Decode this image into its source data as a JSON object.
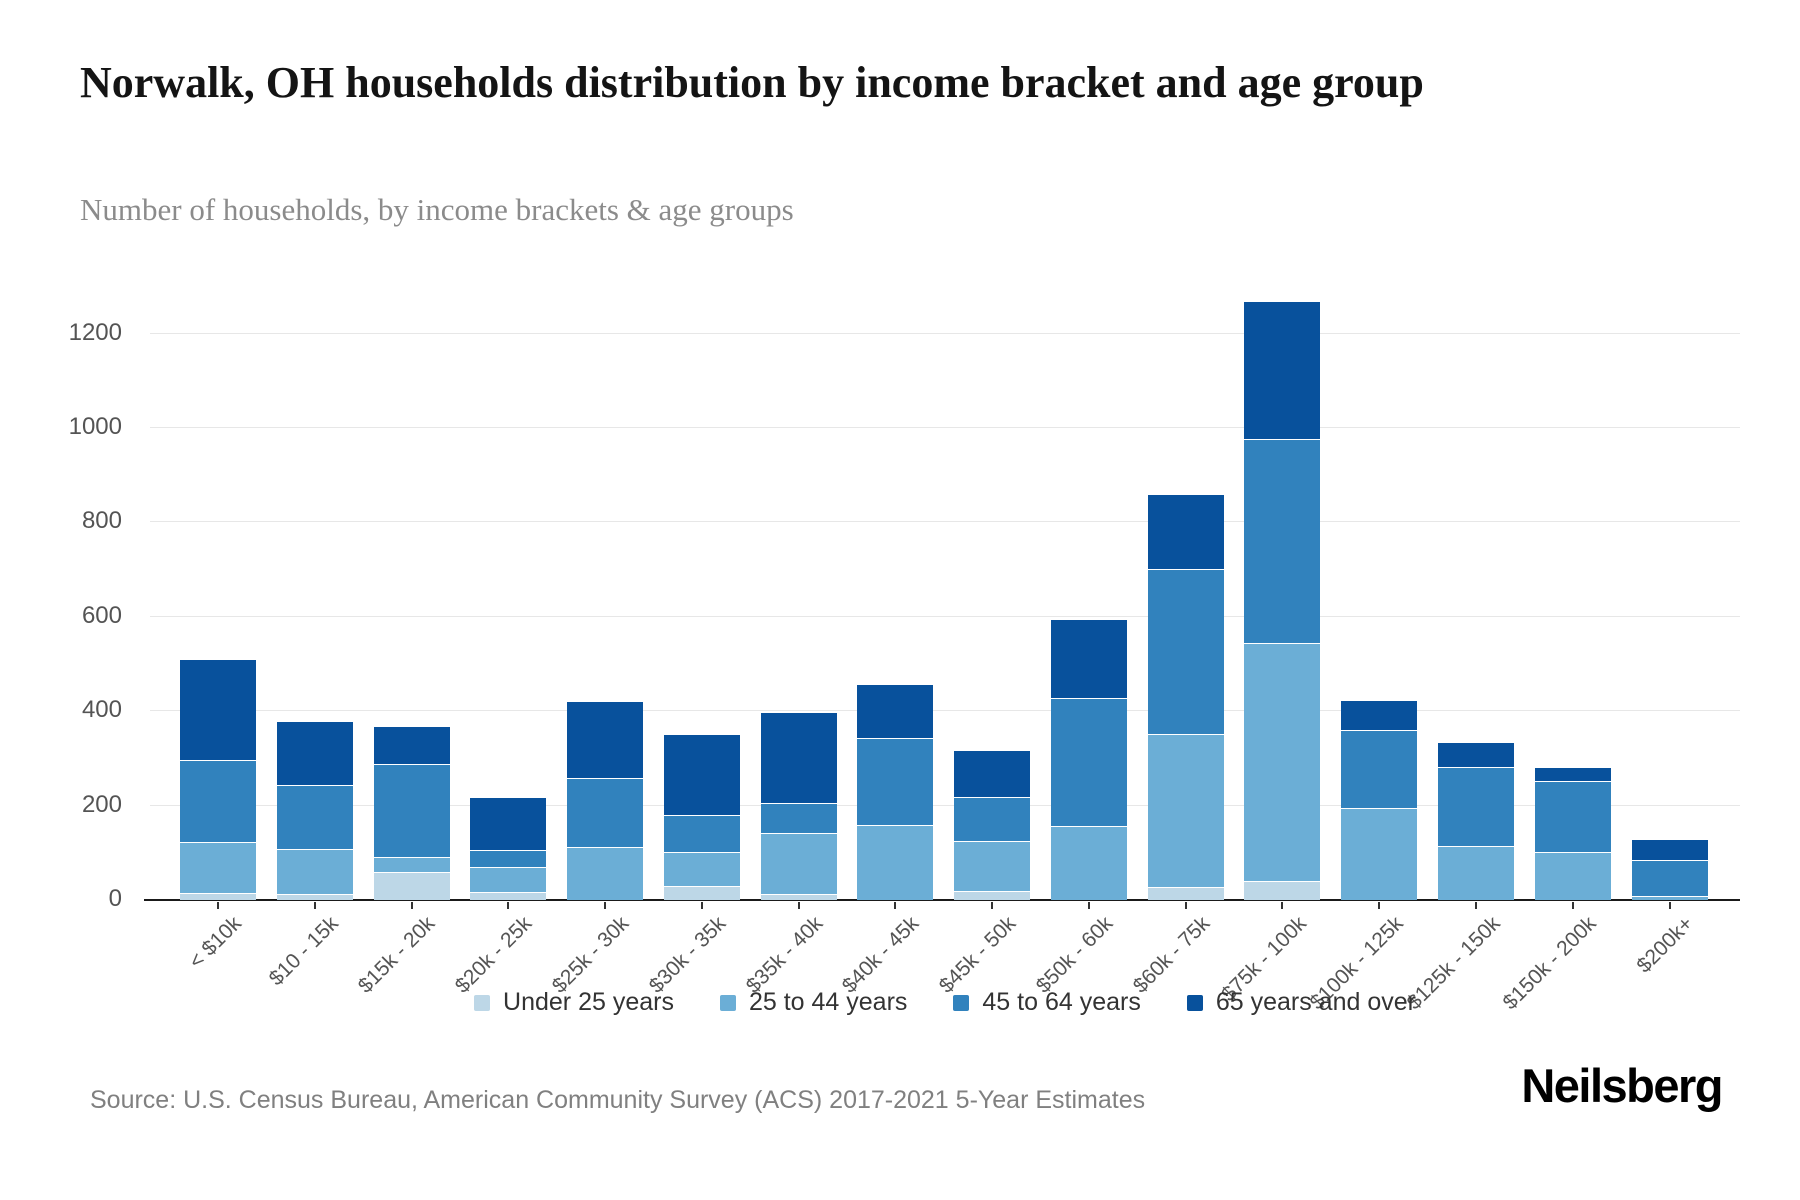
{
  "header": {
    "title": "Norwalk, OH households distribution by income bracket and age group",
    "subtitle": "Number of households, by income brackets & age groups"
  },
  "footer": {
    "source": "Source: U.S. Census Bureau, American Community Survey (ACS) 2017-2021 5-Year Estimates",
    "brand": "Neilsberg"
  },
  "colors": {
    "grid": "#e7e7e7",
    "axis": "#1a1a1a",
    "tick_label": "#545454",
    "legend_text": "#333333",
    "source_text": "#808080"
  },
  "chart_data": {
    "type": "bar",
    "stacked": true,
    "title": "Norwalk, OH households distribution by income bracket and age group",
    "xlabel": "",
    "ylabel": "",
    "ylim": [
      0,
      1300
    ],
    "ytick_step": 200,
    "yticks": [
      0,
      200,
      400,
      600,
      800,
      1000,
      1200
    ],
    "grid": true,
    "legend_position": "bottom",
    "categories": [
      "< $10k",
      "$10 - 15k",
      "$15k - 20k",
      "$20k - 25k",
      "$25k - 30k",
      "$30k - 35k",
      "$35k - 40k",
      "$40k - 45k",
      "$45k - 50k",
      "$50k - 60k",
      "$60k - 75k",
      "$75k - 100k",
      "$100k - 125k",
      "$125k - 150k",
      "$150k - 200k",
      "$200k+"
    ],
    "series": [
      {
        "name": "Under 25 years",
        "color": "#bdd7e7",
        "values": [
          15,
          12,
          59,
          18,
          0,
          30,
          12,
          0,
          20,
          0,
          27,
          40,
          0,
          0,
          0,
          0
        ]
      },
      {
        "name": "25 to 44 years",
        "color": "#6baed6",
        "values": [
          108,
          96,
          33,
          53,
          112,
          72,
          129,
          158,
          104,
          157,
          324,
          504,
          196,
          115,
          102,
          8
        ]
      },
      {
        "name": "45 to 64 years",
        "color": "#3182bd",
        "values": [
          173,
          136,
          196,
          35,
          146,
          78,
          65,
          185,
          94,
          270,
          350,
          432,
          165,
          166,
          150,
          76
        ]
      },
      {
        "name": "65 years and over",
        "color": "#08519c",
        "values": [
          214,
          136,
          80,
          113,
          163,
          171,
          193,
          115,
          99,
          168,
          159,
          293,
          63,
          54,
          30,
          46
        ]
      }
    ]
  }
}
